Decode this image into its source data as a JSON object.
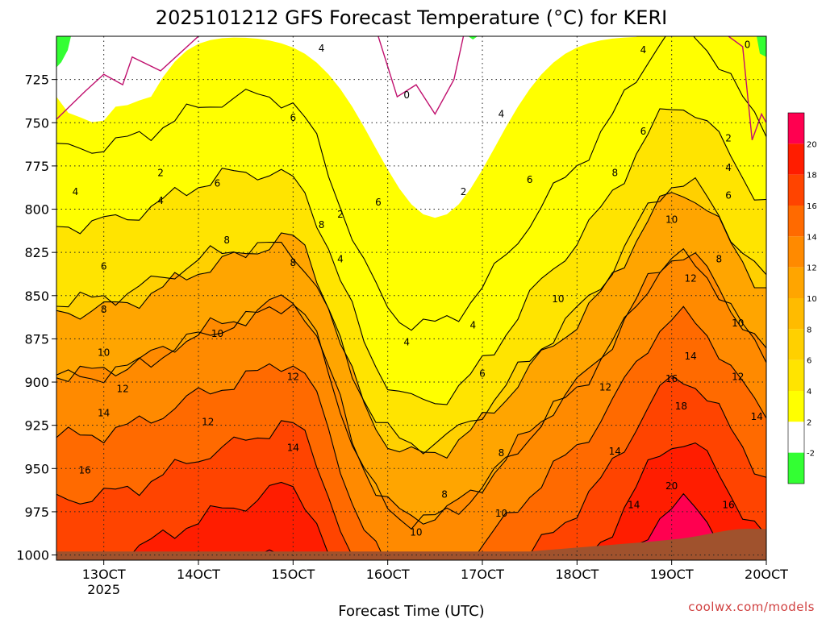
{
  "chart_data": {
    "type": "heatmap",
    "title": "2025101212 GFS Forecast Temperature (°C) for KERI",
    "xlabel": "Forecast Time (UTC)",
    "ylabel": "",
    "credit": "coolwx.com/models",
    "x_ticks": [
      {
        "label": "13OCT",
        "sublabel": "2025",
        "day": 13
      },
      {
        "label": "14OCT",
        "day": 14
      },
      {
        "label": "15OCT",
        "day": 15
      },
      {
        "label": "16OCT",
        "day": 16
      },
      {
        "label": "17OCT",
        "day": 17
      },
      {
        "label": "18OCT",
        "day": 18
      },
      {
        "label": "19OCT",
        "day": 19
      },
      {
        "label": "20OCT",
        "day": 20
      }
    ],
    "xlim": [
      12.5,
      20.0
    ],
    "y_ticks": [
      725,
      750,
      775,
      800,
      825,
      850,
      875,
      900,
      925,
      950,
      975,
      1000
    ],
    "ylim_hPa": [
      700,
      1003
    ],
    "colorbar": [
      {
        "max": -2,
        "color": "#33ff33"
      },
      {
        "min": -2,
        "max": 2,
        "color": "#ffffff"
      },
      {
        "min": 2,
        "max": 4,
        "color": "#ffff00"
      },
      {
        "min": 4,
        "max": 6,
        "color": "#ffe400"
      },
      {
        "min": 6,
        "max": 8,
        "color": "#ffd000"
      },
      {
        "min": 8,
        "max": 10,
        "color": "#ffbb00"
      },
      {
        "min": 10,
        "max": 12,
        "color": "#ffa500"
      },
      {
        "min": 12,
        "max": 14,
        "color": "#ff8a00"
      },
      {
        "min": 14,
        "max": 16,
        "color": "#ff6a00"
      },
      {
        "min": 16,
        "max": 18,
        "color": "#ff4400"
      },
      {
        "min": 18,
        "max": 20,
        "color": "#ff1d00"
      },
      {
        "min": 20,
        "color": "#ff0050"
      }
    ],
    "colorbar_labels": [
      -2,
      2,
      4,
      6,
      8,
      10,
      12,
      14,
      16,
      18,
      20
    ],
    "ground_color": "#a0522d",
    "freezing_line_color": "#c0106e",
    "contour_levels_labeled": [
      -2,
      0,
      2,
      4,
      6,
      8,
      10,
      12,
      14,
      16,
      18,
      20
    ],
    "contour_labels": [
      {
        "t": 12.7,
        "p": 790,
        "v": "4"
      },
      {
        "t": 13.6,
        "p": 779,
        "v": "2"
      },
      {
        "t": 14.2,
        "p": 785,
        "v": "6"
      },
      {
        "t": 13.6,
        "p": 795,
        "v": "4"
      },
      {
        "t": 13.0,
        "p": 833,
        "v": "6"
      },
      {
        "t": 14.3,
        "p": 818,
        "v": "8"
      },
      {
        "t": 13.0,
        "p": 858,
        "v": "8"
      },
      {
        "t": 13.0,
        "p": 883,
        "v": "10"
      },
      {
        "t": 14.2,
        "p": 872,
        "v": "10"
      },
      {
        "t": 13.2,
        "p": 904,
        "v": "12"
      },
      {
        "t": 13.0,
        "p": 918,
        "v": "14"
      },
      {
        "t": 12.8,
        "p": 951,
        "v": "16"
      },
      {
        "t": 14.1,
        "p": 923,
        "v": "12"
      },
      {
        "t": 15.0,
        "p": 938,
        "v": "14"
      },
      {
        "t": 15.0,
        "p": 831,
        "v": "8"
      },
      {
        "t": 15.3,
        "p": 809,
        "v": "8"
      },
      {
        "t": 15.0,
        "p": 747,
        "v": "6"
      },
      {
        "t": 15.3,
        "p": 707,
        "v": "4"
      },
      {
        "t": 15.5,
        "p": 803,
        "v": "2"
      },
      {
        "t": 15.5,
        "p": 829,
        "v": "4"
      },
      {
        "t": 15.0,
        "p": 897,
        "v": "12"
      },
      {
        "t": 15.9,
        "p": 796,
        "v": "6"
      },
      {
        "t": 16.2,
        "p": 734,
        "v": "0"
      },
      {
        "t": 16.2,
        "p": 877,
        "v": "4"
      },
      {
        "t": 16.8,
        "p": 790,
        "v": "2"
      },
      {
        "t": 16.6,
        "p": 965,
        "v": "8"
      },
      {
        "t": 16.3,
        "p": 987,
        "v": "10"
      },
      {
        "t": 16.9,
        "p": 867,
        "v": "4"
      },
      {
        "t": 17.0,
        "p": 895,
        "v": "6"
      },
      {
        "t": 17.2,
        "p": 745,
        "v": "4"
      },
      {
        "t": 17.5,
        "p": 783,
        "v": "6"
      },
      {
        "t": 17.2,
        "p": 941,
        "v": "8"
      },
      {
        "t": 17.2,
        "p": 976,
        "v": "10"
      },
      {
        "t": 17.8,
        "p": 852,
        "v": "10"
      },
      {
        "t": 18.3,
        "p": 903,
        "v": "12"
      },
      {
        "t": 18.4,
        "p": 779,
        "v": "8"
      },
      {
        "t": 18.7,
        "p": 708,
        "v": "4"
      },
      {
        "t": 18.7,
        "p": 755,
        "v": "6"
      },
      {
        "t": 18.4,
        "p": 940,
        "v": "14"
      },
      {
        "t": 18.6,
        "p": 971,
        "v": "14"
      },
      {
        "t": 19.0,
        "p": 806,
        "v": "10"
      },
      {
        "t": 19.2,
        "p": 840,
        "v": "12"
      },
      {
        "t": 19.2,
        "p": 885,
        "v": "14"
      },
      {
        "t": 19.0,
        "p": 898,
        "v": "16"
      },
      {
        "t": 19.1,
        "p": 914,
        "v": "18"
      },
      {
        "t": 19.0,
        "p": 960,
        "v": "20"
      },
      {
        "t": 19.5,
        "p": 829,
        "v": "8"
      },
      {
        "t": 19.6,
        "p": 792,
        "v": "6"
      },
      {
        "t": 19.6,
        "p": 759,
        "v": "2"
      },
      {
        "t": 19.6,
        "p": 776,
        "v": "4"
      },
      {
        "t": 19.8,
        "p": 705,
        "v": "0"
      },
      {
        "t": 19.7,
        "p": 866,
        "v": "10"
      },
      {
        "t": 19.7,
        "p": 897,
        "v": "12"
      },
      {
        "t": 19.9,
        "p": 920,
        "v": "14"
      },
      {
        "t": 19.6,
        "p": 971,
        "v": "16"
      }
    ]
  }
}
